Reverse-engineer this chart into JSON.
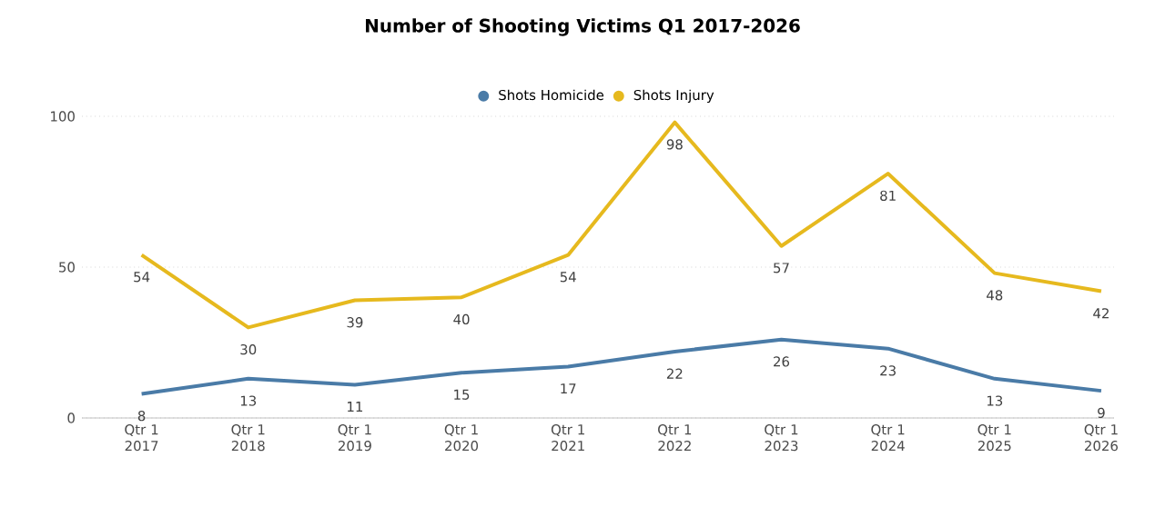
{
  "chart_data": {
    "type": "line",
    "title": "Number of Shooting Victims Q1 2017-2026",
    "categories": [
      "Qtr 1 2017",
      "Qtr 1 2018",
      "Qtr 1 2019",
      "Qtr 1 2020",
      "Qtr 1 2021",
      "Qtr 1 2022",
      "Qtr 1 2023",
      "Qtr 1 2024",
      "Qtr 1 2025",
      "Qtr 1 2026"
    ],
    "series": [
      {
        "name": "Shots Homicide",
        "color": "#4a7ba7",
        "values": [
          8,
          13,
          11,
          15,
          17,
          22,
          26,
          23,
          13,
          9
        ]
      },
      {
        "name": "Shots Injury",
        "color": "#e6b91e",
        "values": [
          54,
          30,
          39,
          40,
          54,
          98,
          57,
          81,
          48,
          42
        ]
      }
    ],
    "ylim": [
      0,
      100
    ],
    "yticks": [
      0,
      50,
      100
    ],
    "grid": "y",
    "legend": "top",
    "data_labels": true,
    "marker": "none",
    "line_style": "solid"
  }
}
